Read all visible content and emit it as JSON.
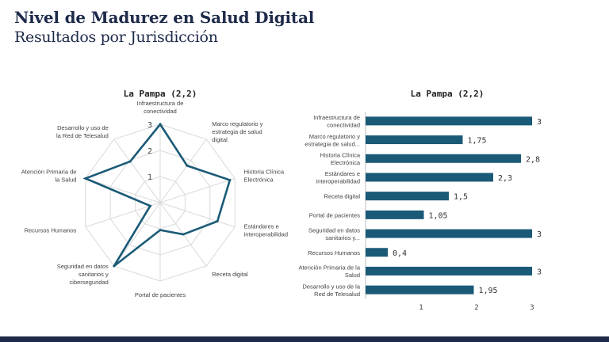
{
  "header": {
    "title": "Nivel de Madurez en Salud Digital",
    "subtitle": "Resultados por Jurisdicción"
  },
  "colors": {
    "accent": "#1a5a77",
    "title": "#1e2a4a",
    "grid": "#d9d9d9"
  },
  "chart_data": [
    {
      "type": "radar",
      "title": "La Pampa (2,2)",
      "categories": [
        "Infraestructura de conectividad",
        "Marco regulatorio y estrategia de salud digital",
        "Historia Clínica Electrónica",
        "Estándares e interoperabilidad",
        "Receta digital",
        "Portal de pacientes",
        "Seguridad en datos sanitarios y ciberseguridad",
        "Recursos Humanos",
        "Atención Primaria de la Salud",
        "Desarrollo y uso de la Red de Telesalud"
      ],
      "values": [
        3,
        1.75,
        2.8,
        2.3,
        1.5,
        1.05,
        3,
        0.4,
        3,
        1.95
      ],
      "rmax": 3,
      "ticks": [
        "1",
        "2",
        "3"
      ],
      "grid": true
    },
    {
      "type": "bar",
      "orientation": "horizontal",
      "title": "La Pampa (2,2)",
      "categories": [
        "Infraestructura de conectividad",
        "Marco regulatorio y estrategia de salud...",
        "Historia Clínica Electrónica",
        "Estándares e interoperabilidad",
        "Receta digital",
        "Portal de pacientes",
        "Seguridad en datos sanitarios y...",
        "Recursos Humanos",
        "Atención Primaria de la Salud",
        "Desarrollo y uso de la Red de Telesalud"
      ],
      "values": [
        3,
        1.75,
        2.8,
        2.3,
        1.5,
        1.05,
        3,
        0.4,
        3,
        1.95
      ],
      "value_labels": [
        "3",
        "1,75",
        "2,8",
        "2,3",
        "1,5",
        "1,05",
        "3",
        "0,4",
        "3",
        "1,95"
      ],
      "xlim": [
        0,
        3
      ],
      "xticks": [
        "1",
        "2",
        "3"
      ],
      "grid": false
    }
  ]
}
